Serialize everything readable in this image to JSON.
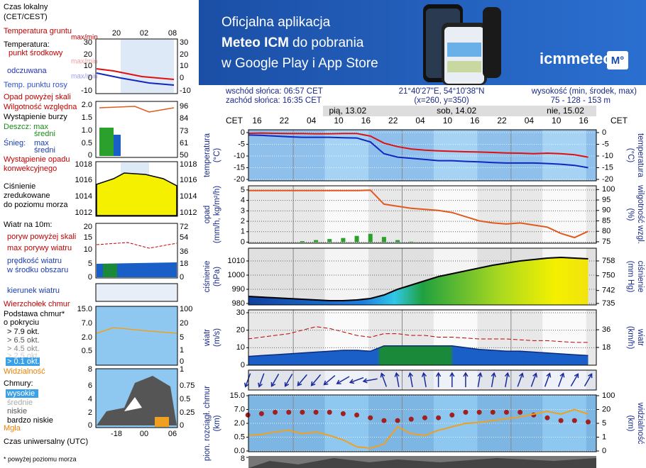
{
  "banner": {
    "line1": "Oficjalna aplikacja",
    "line2_bold": "Meteo ICM",
    "line2_rest": "do pobrania",
    "line3": "w Google Play i App Store",
    "logo": "icmmeteo",
    "badge": "M°"
  },
  "info": {
    "sunrise": "wschód słońca: 06:57 CET",
    "sunset": "zachód słońca: 16:35 CET",
    "coords": "21°40'27\"E, 54°10'38\"N",
    "grid": "(x=260, y=350)",
    "altitude_title": "wysokość (min, środek, max)",
    "altitude": "75 - 128 - 153 m"
  },
  "legend": {
    "texts": [
      "Czas lokalny",
      "(CET/CEST)",
      "Temperatura gruntu",
      "max/min",
      "Temperatura:",
      "punkt środkowy",
      "max/min",
      "odczuwana",
      "max/min",
      "Temp. punktu rosy",
      "Opad powyżej skali",
      "Wilgotność względna",
      "Wystąpienie burzy",
      "Deszcz: max",
      "średni",
      "Śnieg:",
      "max",
      "średni",
      "Wystąpienie opadu",
      "konwekcyjnego",
      "Ciśnienie",
      "zredukowane",
      "do poziomu morza",
      "Wiatr na 10m:",
      "poryw powyżej skali",
      "max porywy wiatru",
      "prędkość wiatru",
      "w środku obszaru",
      "kierunek wiatru",
      "Wierzchołek chmur",
      "Podstawa chmur*",
      "o pokryciu",
      "> 7.9 okt.",
      "> 6.5 okt.",
      "> 4.5 okt.",
      "> 2.5 okt.",
      "> 0.1 okt.",
      "Widzialność",
      "Chmury:",
      "wysokie",
      "średnie",
      "niskie",
      "bardzo niskie",
      "Mgła",
      "Czas uniwersalny (UTC)",
      "* powyżej poziomu morza"
    ],
    "local_hours": [
      "20",
      "02",
      "08"
    ],
    "utc_hours": [
      "-18",
      "00",
      "06"
    ],
    "temp_ticks": [
      "30",
      "20",
      "10",
      "0",
      "-10"
    ],
    "precip_ticks": [
      "2.0",
      "1.5",
      "1.0",
      "0.5",
      "0"
    ],
    "humidity_ticks": [
      "96",
      "84",
      "73",
      "61",
      "50"
    ],
    "pressure_ticks": [
      "1018",
      "1016",
      "1014",
      "1012"
    ],
    "wind_ticks": [
      "20",
      "15",
      "10",
      "5",
      "0"
    ],
    "wind_kmh_ticks": [
      "72",
      "54",
      "36",
      "18",
      "0"
    ],
    "cloudbase_ticks": [
      "15.0",
      "7.0",
      "2.0",
      "0.5"
    ],
    "visibility_ticks": [
      "100",
      "20",
      "5",
      "1",
      "0"
    ],
    "clouds_ticks": [
      "8",
      "6",
      "4",
      "2",
      "0"
    ],
    "cloud_cover_ticks": [
      "1",
      "0.75",
      "0.5",
      "0.25",
      "0"
    ]
  },
  "meteogram": {
    "time": {
      "zone": "CET",
      "hours": [
        "16",
        "22",
        "04",
        "10",
        "16",
        "22",
        "04",
        "10",
        "16",
        "22",
        "04",
        "10",
        "16"
      ],
      "days": [
        "pią, 13.02",
        "sob, 14.02",
        "nie, 15.02"
      ]
    },
    "temperature": {
      "title": [
        "temperatura",
        "(°C)"
      ],
      "right_title": [
        "(°C)",
        "temperatura"
      ],
      "ylim": [
        -20.6,
        1.2
      ],
      "yticks": [
        0,
        -5,
        -10,
        -15,
        -20
      ],
      "series": [
        {
          "color": "#e01010",
          "values": [
            -0.3,
            -0.2,
            -0.3,
            -0.4,
            -0.4,
            -0.5,
            -0.5,
            -0.4,
            -0.4,
            -1.5,
            -4.5,
            -6,
            -7,
            -7.5,
            -7.8,
            -8,
            -8.2,
            -8.3,
            -8.5,
            -8.7,
            -8.8,
            -9,
            -8.8,
            -9,
            -9.5,
            -10.5
          ]
        },
        {
          "color": "#1028c0",
          "values": [
            -1,
            -1.2,
            -1.5,
            -1.8,
            -2,
            -2,
            -2,
            -2.2,
            -2.3,
            -4,
            -9,
            -10.5,
            -11,
            -11.5,
            -12,
            -12,
            -12.3,
            -12.5,
            -12.8,
            -13,
            -13,
            -13,
            -13.2,
            -13.5,
            -14,
            -15
          ]
        }
      ]
    },
    "precipitation": {
      "title": [
        "opad",
        "(mm/h, kg/m²/h)"
      ],
      "right_title": [
        "(%)",
        "wilgotność wzgl."
      ],
      "ylim": [
        -0.1,
        5.4
      ],
      "yticks": [
        0,
        1,
        2,
        3,
        4,
        5
      ],
      "y2lim": [
        74.3,
        101.8
      ],
      "y2ticks": [
        75,
        80,
        85,
        90,
        95,
        100
      ],
      "rain": {
        "color": "#2ca02c",
        "values": [
          0,
          0,
          0,
          0,
          0.1,
          0.2,
          0.3,
          0.4,
          0.6,
          0.8,
          0.5,
          0.2,
          0.05,
          0,
          0,
          0,
          0,
          0,
          0,
          0,
          0,
          0,
          0,
          0,
          0,
          0
        ]
      },
      "humidity": {
        "color": "#e05a20",
        "values": [
          99.5,
          99.5,
          99.5,
          99.5,
          99.5,
          99.5,
          99.5,
          99.5,
          99.5,
          99.7,
          93,
          92,
          91,
          90.5,
          90,
          89,
          87,
          85,
          84,
          83.5,
          84,
          83,
          82,
          79,
          77,
          80
        ]
      }
    },
    "pressure": {
      "title": [
        "ciśnienie",
        "(hPa)"
      ],
      "right_title": [
        "(mm Hg)",
        "ciśnienie"
      ],
      "ylim": [
        979,
        1019
      ],
      "yticks": [
        980,
        990,
        1000,
        1010
      ],
      "y2lim": [
        734.2,
        764.9
      ],
      "y2ticks": [
        735,
        742,
        750,
        758
      ],
      "color": "#000000",
      "values": [
        985,
        984.5,
        984,
        983.5,
        983,
        982.5,
        982,
        982,
        982.5,
        983.5,
        986,
        990,
        993,
        996,
        999,
        1001,
        1003,
        1005,
        1007,
        1008.5,
        1010,
        1011,
        1012,
        1012.5,
        1012,
        1011.5
      ]
    },
    "wind": {
      "title": [
        "wiatr",
        "(m/s)"
      ],
      "right_title": [
        "(km/h)",
        "wiatr"
      ],
      "ylim": [
        0,
        31.6
      ],
      "yticks": [
        0,
        10,
        20,
        30
      ],
      "y2lim": [
        0,
        56.2
      ],
      "y2ticks": [
        18,
        36
      ],
      "speed": {
        "color": "#1a5fc8",
        "values": [
          5,
          5.5,
          6,
          6.5,
          7,
          7.5,
          8,
          8.5,
          8.5,
          8,
          11,
          11,
          11,
          11,
          11,
          11,
          10,
          9,
          8.5,
          8,
          8,
          7.5,
          7,
          6.5,
          6,
          5.5
        ]
      },
      "gust": {
        "color": "#c00000",
        "values": [
          15,
          16,
          17,
          18,
          20,
          22,
          21,
          19,
          17,
          16,
          18,
          18,
          17,
          17,
          16,
          16,
          15.5,
          15,
          15,
          15,
          14.5,
          14,
          14,
          13.5,
          13,
          13
        ]
      }
    },
    "direction": {
      "color": "#1a2a9a",
      "values": [
        200,
        200,
        210,
        210,
        220,
        220,
        230,
        240,
        250,
        260,
        340,
        350,
        350,
        350,
        0,
        0,
        0,
        10,
        10,
        10,
        20,
        20,
        20,
        20,
        30,
        30
      ]
    },
    "clouds": {
      "title": [
        "pion. rozciągł. chmur",
        "(km)"
      ],
      "right_title": [
        "(km)",
        "widzialność"
      ],
      "yticks": [
        {
          "value": 0,
          "label": "0.0"
        },
        0.5,
        {
          "value": 2,
          "label": "2.0"
        },
        {
          "value": 7,
          "label": "7.0"
        },
        {
          "value": 15,
          "label": "15.0"
        }
      ],
      "y2ticks": [
        0,
        1,
        5,
        20,
        100
      ],
      "cloud_base": {
        "color": "#a02020",
        "values": [
          5,
          5.5,
          6,
          6,
          6,
          6,
          6,
          5.5,
          5,
          4,
          3,
          3,
          3.5,
          4,
          4,
          5,
          6,
          6,
          6,
          6,
          6,
          5,
          4,
          3,
          3,
          2.5
        ]
      },
      "visibility": {
        "color": "#f0a020",
        "values": [
          1.5,
          1.8,
          2.5,
          3,
          2,
          2.5,
          1.5,
          0.8,
          0.3,
          0.2,
          0.5,
          4,
          2,
          1.5,
          3,
          4,
          5,
          6,
          8,
          10,
          12,
          15,
          18,
          15,
          20,
          15
        ]
      }
    },
    "cover": {
      "yticks": [
        8
      ]
    }
  }
}
